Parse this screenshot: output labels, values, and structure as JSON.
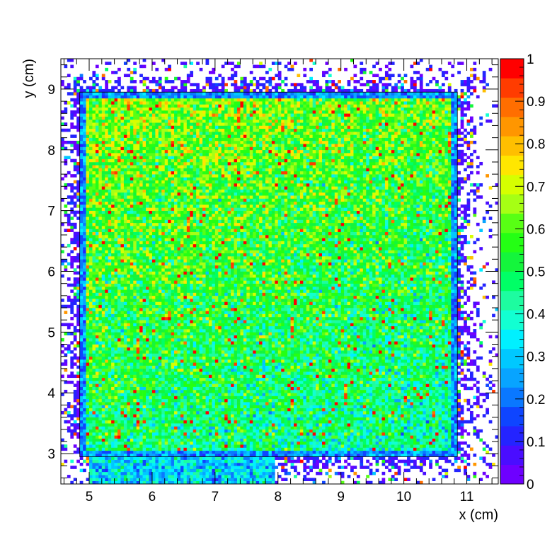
{
  "chart_data": {
    "type": "heatmap",
    "title": "",
    "xlabel": "x (cm)",
    "ylabel": "y (cm)",
    "xlim": [
      4.55,
      11.5
    ],
    "ylim": [
      2.5,
      9.5
    ],
    "x_ticks": [
      5,
      6,
      7,
      8,
      9,
      10,
      11
    ],
    "x_tick_labels": [
      "5",
      "6",
      "7",
      "8",
      "9",
      "10",
      "11"
    ],
    "y_ticks": [
      3,
      4,
      5,
      6,
      7,
      8,
      9
    ],
    "y_tick_labels": [
      "3",
      "4",
      "5",
      "6",
      "7",
      "8",
      "9"
    ],
    "z_range": [
      0,
      1
    ],
    "colorbar_ticks": [
      0,
      0.1,
      0.2,
      0.3,
      0.4,
      0.5,
      0.6,
      0.7,
      0.8,
      0.9,
      1
    ],
    "colorbar_tick_labels": [
      "0",
      "0.1",
      "0.2",
      "0.3",
      "0.4",
      "0.5",
      "0.6",
      "0.7",
      "0.8",
      "0.9",
      "1"
    ],
    "colorbar_colors": [
      "#6e00ff",
      "#4a0dff",
      "#2424ff",
      "#0e45ff",
      "#0a78ff",
      "#08a4ff",
      "#00c8ff",
      "#00f0ff",
      "#12ffd2",
      "#1dfca0",
      "#00ff66",
      "#14f53c",
      "#24ff14",
      "#58ff14",
      "#a6ff14",
      "#d6ff00",
      "#ffe600",
      "#ffbf00",
      "#ff9600",
      "#ff6e00",
      "#ff3c00",
      "#ff0000"
    ],
    "bins": {
      "x_bin_width": 0.05,
      "y_bin_width": 0.05
    },
    "frame_region": {
      "x": [
        4.85,
        10.85
      ],
      "y": [
        2.95,
        8.95
      ]
    },
    "dense_region_mean": 0.55,
    "lower_strip_region": {
      "x": [
        5.0,
        7.95
      ],
      "y": [
        2.5,
        2.95
      ],
      "mean": 0.32
    },
    "grid": false,
    "legend": "colorbar-right"
  }
}
